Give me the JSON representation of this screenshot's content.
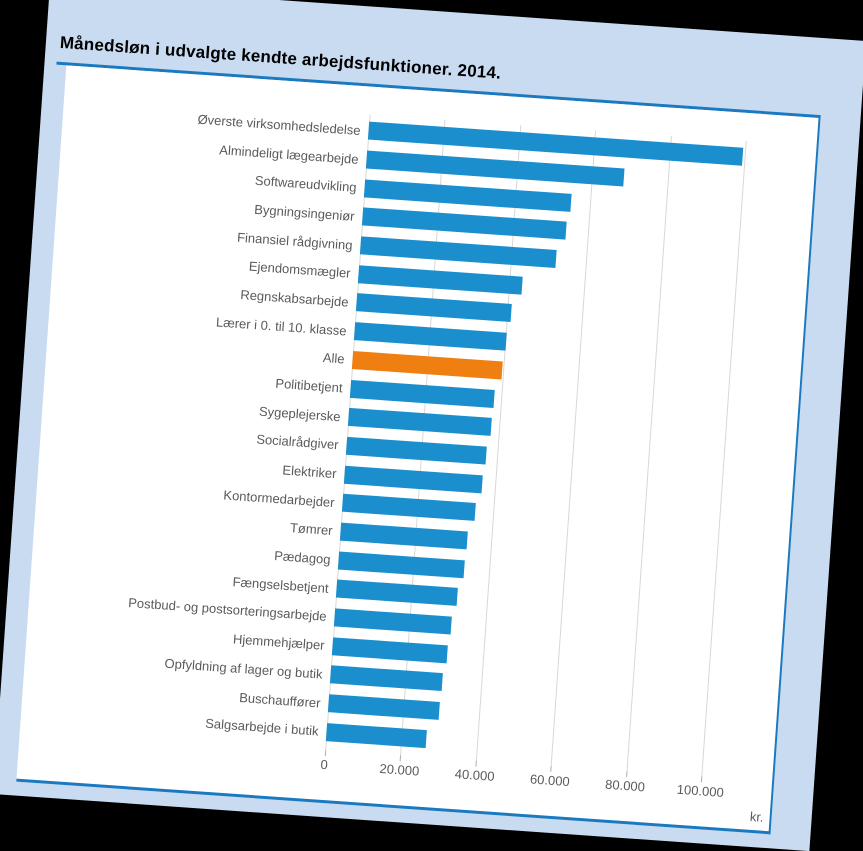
{
  "page": {
    "background_color": "#c8dbf0",
    "outside_color": "#000000",
    "accent_color": "#1b79c0",
    "panel_color": "#ffffff"
  },
  "chart_data": {
    "type": "bar",
    "orientation": "horizontal",
    "title": "Månedsløn i udvalgte kendte arbejdsfunktioner. 2014.",
    "unit": "kr.",
    "categories": [
      "Øverste virksomhedsledelse",
      "Almindeligt lægearbejde",
      "Softwareudvikling",
      "Bygningsingeniør",
      "Finansiel rådgivning",
      "Ejendomsmægler",
      "Regnskabsarbejde",
      "Lærer i 0. til 10. klasse",
      "Alle",
      "Politibetjent",
      "Sygeplejerske",
      "Socialrådgiver",
      "Elektriker",
      "Kontormedarbejder",
      "Tømrer",
      "Pædagog",
      "Fængselsbetjent",
      "Postbud- og postsorteringsarbejde",
      "Hjemmehjælper",
      "Opfyldning af lager og butik",
      "Buschauffører",
      "Salgsarbejde i butik"
    ],
    "values": [
      99500,
      68500,
      55000,
      54000,
      52000,
      43500,
      41000,
      40200,
      39800,
      38200,
      37900,
      37100,
      36600,
      35300,
      33700,
      33400,
      32100,
      31000,
      30500,
      29600,
      29400,
      26400
    ],
    "highlight_category": "Alle",
    "bar_color": "#1b8fce",
    "highlight_color": "#ee7f10",
    "gridline_color": "#d8d8d2",
    "text_color": "#5a5a5a",
    "x_ticks": [
      {
        "value": 0,
        "label": "0"
      },
      {
        "value": 20000,
        "label": "20.000"
      },
      {
        "value": 40000,
        "label": "40.000"
      },
      {
        "value": 60000,
        "label": "60.000"
      },
      {
        "value": 80000,
        "label": "80.000"
      },
      {
        "value": 100000,
        "label": "100.000"
      }
    ],
    "xlim": [
      0,
      115000
    ],
    "grid": true,
    "legend": false
  }
}
